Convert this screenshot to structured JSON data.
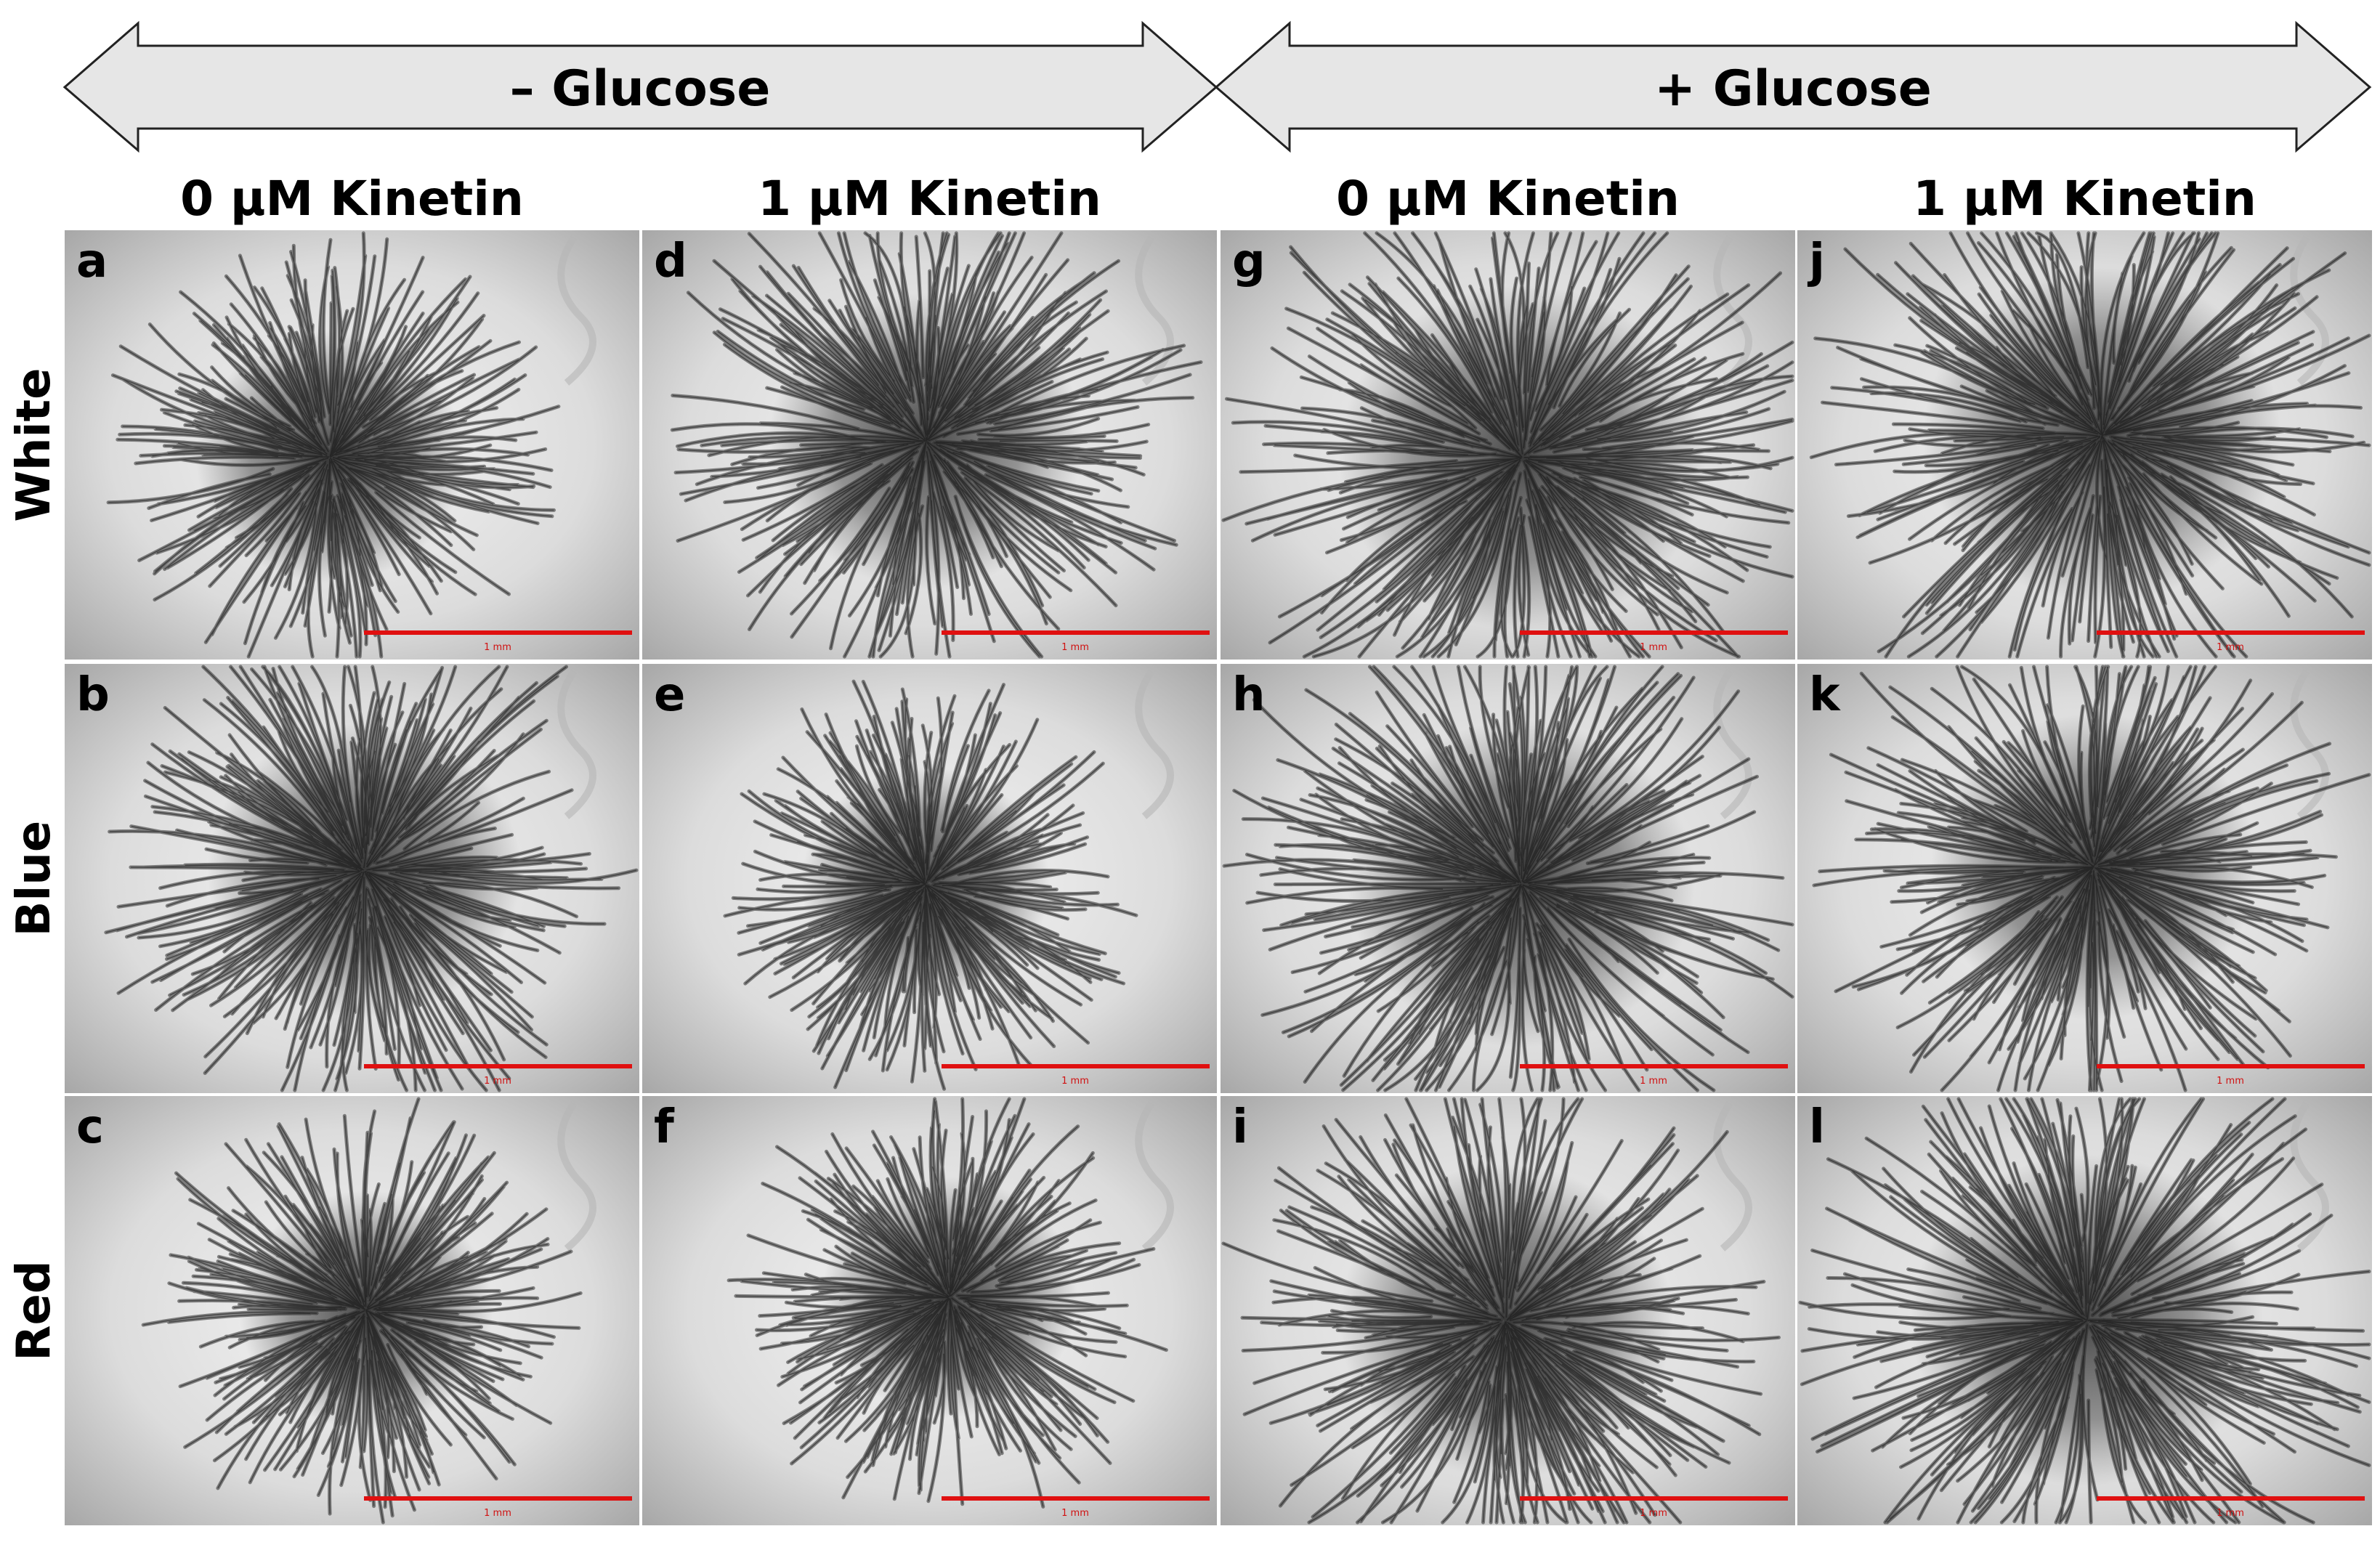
{
  "arrows": [
    {
      "label": "– Glucose"
    },
    {
      "label": "+ Glucose"
    }
  ],
  "columns": [
    "0 μM Kinetin",
    "1 μM Kinetin",
    "0 μM Kinetin",
    "1 μM Kinetin"
  ],
  "rows": [
    {
      "label": "White",
      "panels": [
        {
          "letter": "a",
          "scale": "1 mm"
        },
        {
          "letter": "d",
          "scale": "1 mm"
        },
        {
          "letter": "g",
          "scale": "1 mm"
        },
        {
          "letter": "j",
          "scale": "1 mm"
        }
      ]
    },
    {
      "label": "Blue",
      "panels": [
        {
          "letter": "b",
          "scale": "1 mm"
        },
        {
          "letter": "e",
          "scale": "1 mm"
        },
        {
          "letter": "h",
          "scale": "1 mm"
        },
        {
          "letter": "k",
          "scale": "1 mm"
        }
      ]
    },
    {
      "label": "Red",
      "panels": [
        {
          "letter": "c",
          "scale": "1 mm"
        },
        {
          "letter": "f",
          "scale": "1 mm"
        },
        {
          "letter": "i",
          "scale": "1 mm"
        },
        {
          "letter": "l",
          "scale": "1 mm"
        }
      ]
    }
  ]
}
